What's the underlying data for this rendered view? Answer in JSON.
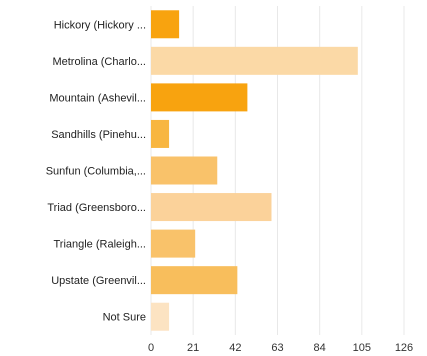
{
  "chart_data": {
    "type": "bar",
    "orientation": "horizontal",
    "categories": [
      "Hickory (Hickory ...",
      "Metrolina (Charlo...",
      "Mountain (Ashevil...",
      "Sandhills (Pinehu...",
      "Sunfun (Columbia,...",
      "Triad (Greensboro...",
      "Triangle (Raleigh...",
      "Upstate (Greenvil...",
      "Not Sure"
    ],
    "values": [
      14,
      103,
      48,
      9,
      33,
      60,
      22,
      43,
      9
    ],
    "bar_colors": [
      "#F8A30F",
      "#FBD9A6",
      "#F8A30F",
      "#F8B640",
      "#F9C26A",
      "#FBD29A",
      "#F9C26A",
      "#F8BE5C",
      "#FCE3C2"
    ],
    "x_ticks": [
      "0",
      "21",
      "42",
      "63",
      "84",
      "105",
      "126"
    ],
    "xlim": [
      0,
      126
    ],
    "grid": true,
    "grid_color": "#E8E8E8",
    "title": "",
    "xlabel": "",
    "ylabel": ""
  }
}
